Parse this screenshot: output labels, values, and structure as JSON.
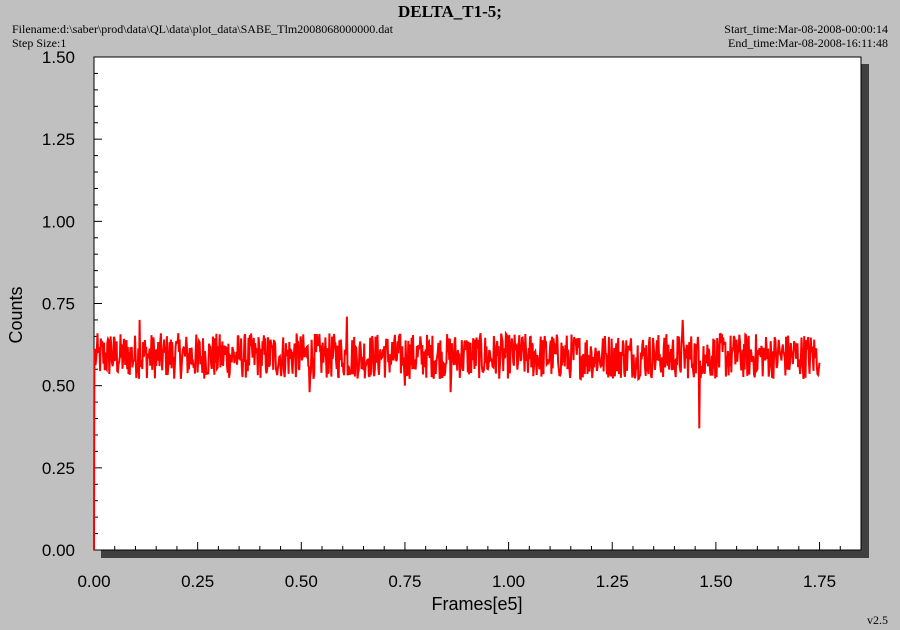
{
  "header": {
    "filename": "Filename:d:\\saber\\prod\\data\\QL\\data\\plot_data\\SABE_Tlm2008068000000.dat",
    "step_size": "Step Size:1",
    "start_time": "Start_time:Mar-08-2008-00:00:14",
    "end_time": "End_time:Mar-08-2008-16:11:48"
  },
  "footer": {
    "version": "v2.5"
  },
  "colors": {
    "series": "#ff0000",
    "plot_background": "#ffffff",
    "page_background": "#c0c0c0"
  },
  "chart_data": {
    "type": "line",
    "title": "DELTA_T1-5;",
    "xlabel": "Frames[e5]",
    "ylabel": "Counts",
    "xlim": [
      0,
      1.85
    ],
    "ylim": [
      0,
      1.5
    ],
    "xticks": [
      "0.00",
      "0.25",
      "0.50",
      "0.75",
      "1.00",
      "1.25",
      "1.50",
      "1.75"
    ],
    "yticks": [
      "0.00",
      "0.25",
      "0.50",
      "0.75",
      "1.00",
      "1.25",
      "1.50"
    ],
    "grid": false,
    "legend": "none",
    "series": [
      {
        "color": "#ff0000",
        "band_min": 0.52,
        "band_max": 0.66,
        "x": [
          0.0,
          0.0005,
          0.001,
          0.005,
          0.01,
          0.04,
          0.08,
          0.11,
          0.15,
          0.2,
          0.25,
          0.3,
          0.35,
          0.4,
          0.45,
          0.5,
          0.52,
          0.55,
          0.6,
          0.61,
          0.65,
          0.7,
          0.75,
          0.8,
          0.85,
          0.86,
          0.9,
          0.95,
          1.0,
          1.05,
          1.1,
          1.15,
          1.2,
          1.25,
          1.3,
          1.35,
          1.4,
          1.42,
          1.45,
          1.46,
          1.465,
          1.47,
          1.5,
          1.55,
          1.6,
          1.65,
          1.7,
          1.75
        ],
        "y": [
          0.0,
          0.35,
          0.6,
          0.58,
          0.6,
          0.65,
          0.55,
          0.7,
          0.56,
          0.63,
          0.54,
          0.62,
          0.58,
          0.6,
          0.55,
          0.63,
          0.48,
          0.6,
          0.57,
          0.71,
          0.55,
          0.62,
          0.5,
          0.61,
          0.57,
          0.48,
          0.63,
          0.55,
          0.6,
          0.58,
          0.62,
          0.55,
          0.6,
          0.58,
          0.56,
          0.62,
          0.58,
          0.7,
          0.6,
          0.37,
          0.56,
          0.62,
          0.57,
          0.64,
          0.55,
          0.61,
          0.58,
          0.57
        ]
      }
    ]
  }
}
